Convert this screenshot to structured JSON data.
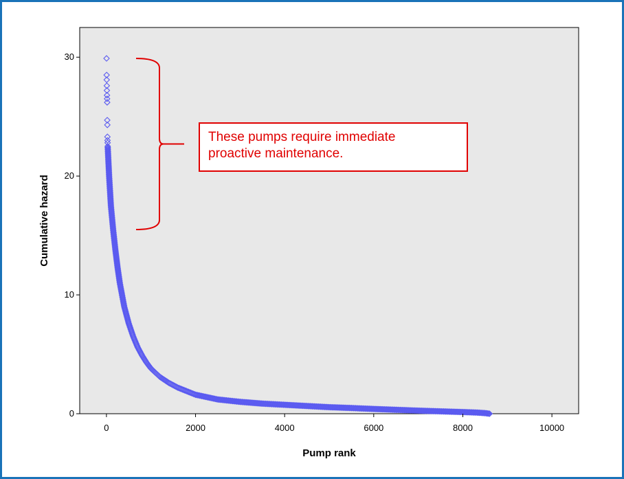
{
  "chart_data": {
    "type": "scatter",
    "title": "",
    "xlabel": "Pump rank",
    "ylabel": "Cumulative hazard",
    "xlim": [
      -600,
      10600
    ],
    "ylim": [
      0,
      30
    ],
    "ytop": 32.5,
    "xticks": [
      0,
      2000,
      4000,
      6000,
      8000,
      10000
    ],
    "yticks": [
      0,
      10,
      20,
      30
    ],
    "marker": "hollow-diamond",
    "marker_color": "#5b5bf0",
    "plot_background": "#e8e8e8",
    "grid": false,
    "highlighted_points": [
      {
        "x": 2,
        "y": 29.9
      },
      {
        "x": 4,
        "y": 28.5
      },
      {
        "x": 6,
        "y": 28.1
      },
      {
        "x": 8,
        "y": 27.6
      },
      {
        "x": 10,
        "y": 27.2
      },
      {
        "x": 12,
        "y": 26.8
      },
      {
        "x": 14,
        "y": 26.5
      },
      {
        "x": 16,
        "y": 26.2
      },
      {
        "x": 18,
        "y": 24.7
      },
      {
        "x": 20,
        "y": 24.3
      },
      {
        "x": 22,
        "y": 23.3
      },
      {
        "x": 24,
        "y": 23.0
      },
      {
        "x": 26,
        "y": 22.8
      }
    ],
    "curve": {
      "x": [
        28,
        60,
        100,
        150,
        200,
        250,
        300,
        400,
        500,
        600,
        700,
        800,
        900,
        1000,
        1200,
        1400,
        1600,
        1800,
        2000,
        2500,
        3000,
        3500,
        4000,
        4500,
        5000,
        5500,
        6000,
        6500,
        7000,
        7500,
        8000,
        8300,
        8500,
        8600
      ],
      "y": [
        22.5,
        20.0,
        17.5,
        15.5,
        13.8,
        12.3,
        11.0,
        9.0,
        7.6,
        6.5,
        5.6,
        4.9,
        4.3,
        3.8,
        3.1,
        2.6,
        2.2,
        1.9,
        1.6,
        1.2,
        1.0,
        0.85,
        0.75,
        0.65,
        0.55,
        0.48,
        0.4,
        0.33,
        0.26,
        0.2,
        0.14,
        0.1,
        0.05,
        0.0
      ]
    },
    "annotation": {
      "lines": [
        "These pumps require immediate",
        "proactive maintenance."
      ],
      "bracket_ymin": 15.5,
      "bracket_ymax": 29.9,
      "color": "#e00000"
    }
  }
}
